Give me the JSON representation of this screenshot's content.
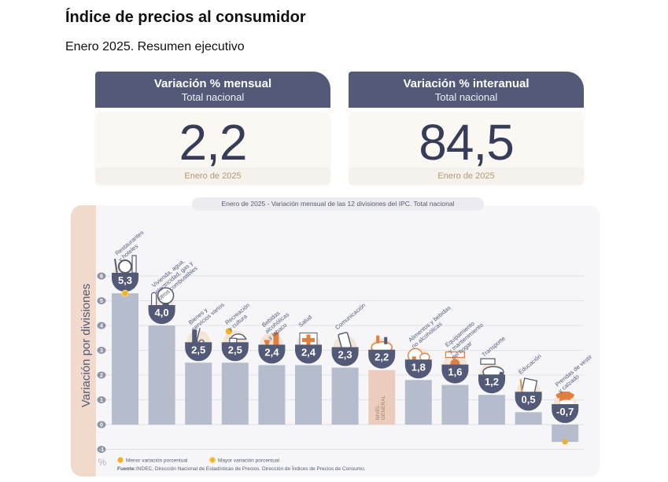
{
  "header": {
    "title": "Índice de precios al consumidor",
    "subtitle": "Enero 2025. Resumen ejecutivo"
  },
  "kpis": [
    {
      "title": "Variación % mensual",
      "subtitle": "Total nacional",
      "value": "2,2",
      "footer": "Enero de 2025"
    },
    {
      "title": "Variación % interanual",
      "subtitle": "Total nacional",
      "value": "84,5",
      "footer": "Enero de 2025"
    }
  ],
  "colors": {
    "header_bg": "#525a78",
    "bar": "#b5bccb",
    "bar_general": "#ebcdbd",
    "badge": "#525a78",
    "marker": "#f2b01e",
    "side_band": "#f1d9cc",
    "panel": "#f6f6f8"
  },
  "chart_data": {
    "type": "bar",
    "title": "Enero de 2025 - Variación mensual de las 12 divisiones del IPC. Total nacional",
    "ylabel": "Variación por divisiones",
    "yunit": "%",
    "ylim": [
      -1,
      6
    ],
    "yticks": [
      -1,
      0,
      1,
      2,
      3,
      4,
      5,
      6
    ],
    "grid": true,
    "categories": [
      "Restaurantes y hoteles",
      "Vivienda, agua, electricidad, gas y otros combustibles",
      "Bienes y servicios varios",
      "Recreación y cultura",
      "Bebidas alcohólicas y tabaco",
      "Salud",
      "Comunicación",
      "Nivel general",
      "Alimentos y bebidas no alcohólicas",
      "Equipamiento y mantenimiento del hogar",
      "Transporte",
      "Educación",
      "Prendas de vestir y calzado"
    ],
    "label_lines": [
      [
        "Restaurantes",
        "y hoteles"
      ],
      [
        "Vivienda, agua,",
        "electricidad, gas y",
        "otros combustibles"
      ],
      [
        "Bienes y",
        "servicios varios"
      ],
      [
        "Recreación",
        "y cultura"
      ],
      [
        "Bebidas",
        "alcohólicas",
        "y tabaco"
      ],
      [
        "Salud"
      ],
      [
        "Comunicación"
      ],
      [],
      [
        "Alimentos y bebidas",
        "no alcohólicas"
      ],
      [
        "Equipamiento",
        "y mantenimiento",
        "del hogar"
      ],
      [
        "Transporte"
      ],
      [
        "Educación"
      ],
      [
        "Prendas de vestir",
        "y calzado"
      ]
    ],
    "values": [
      5.3,
      4.0,
      2.5,
      2.5,
      2.4,
      2.4,
      2.3,
      2.2,
      1.8,
      1.6,
      1.2,
      0.5,
      -0.7
    ],
    "value_labels": [
      "5,3",
      "4,0",
      "2,5",
      "2,5",
      "2,4",
      "2,4",
      "2,3",
      "2,2",
      "1,8",
      "1,6",
      "1,2",
      "0,5",
      "-0,7"
    ],
    "icons": [
      "restaurant-icon",
      "lightbulb-icon",
      "comb-scissors-icon",
      "umbrella-sun-icon",
      "bottle-glass-icon",
      "health-cross-icon",
      "smartphone-icon",
      "shopping-bag-icon",
      "food-chicken-icon",
      "appliance-icon",
      "bus-car-icon",
      "notebook-pencil-icon",
      "tshirt-shoe-icon"
    ],
    "general_index": 7,
    "general_label": [
      "NIVEL",
      "GENERAL"
    ],
    "max_marker_index": 0,
    "min_marker_index": 12,
    "legend": [
      {
        "label": "Menor variación porcentual",
        "marker": "min"
      },
      {
        "label": "Mayor variación porcentual",
        "marker": "max"
      }
    ],
    "legend_position": "bottom-left",
    "source_label": "Fuente:",
    "source_text": "INDEC, Dirección Nacional de Estadísticas de Precios. Dirección de Índices de Precios de Consumo."
  }
}
